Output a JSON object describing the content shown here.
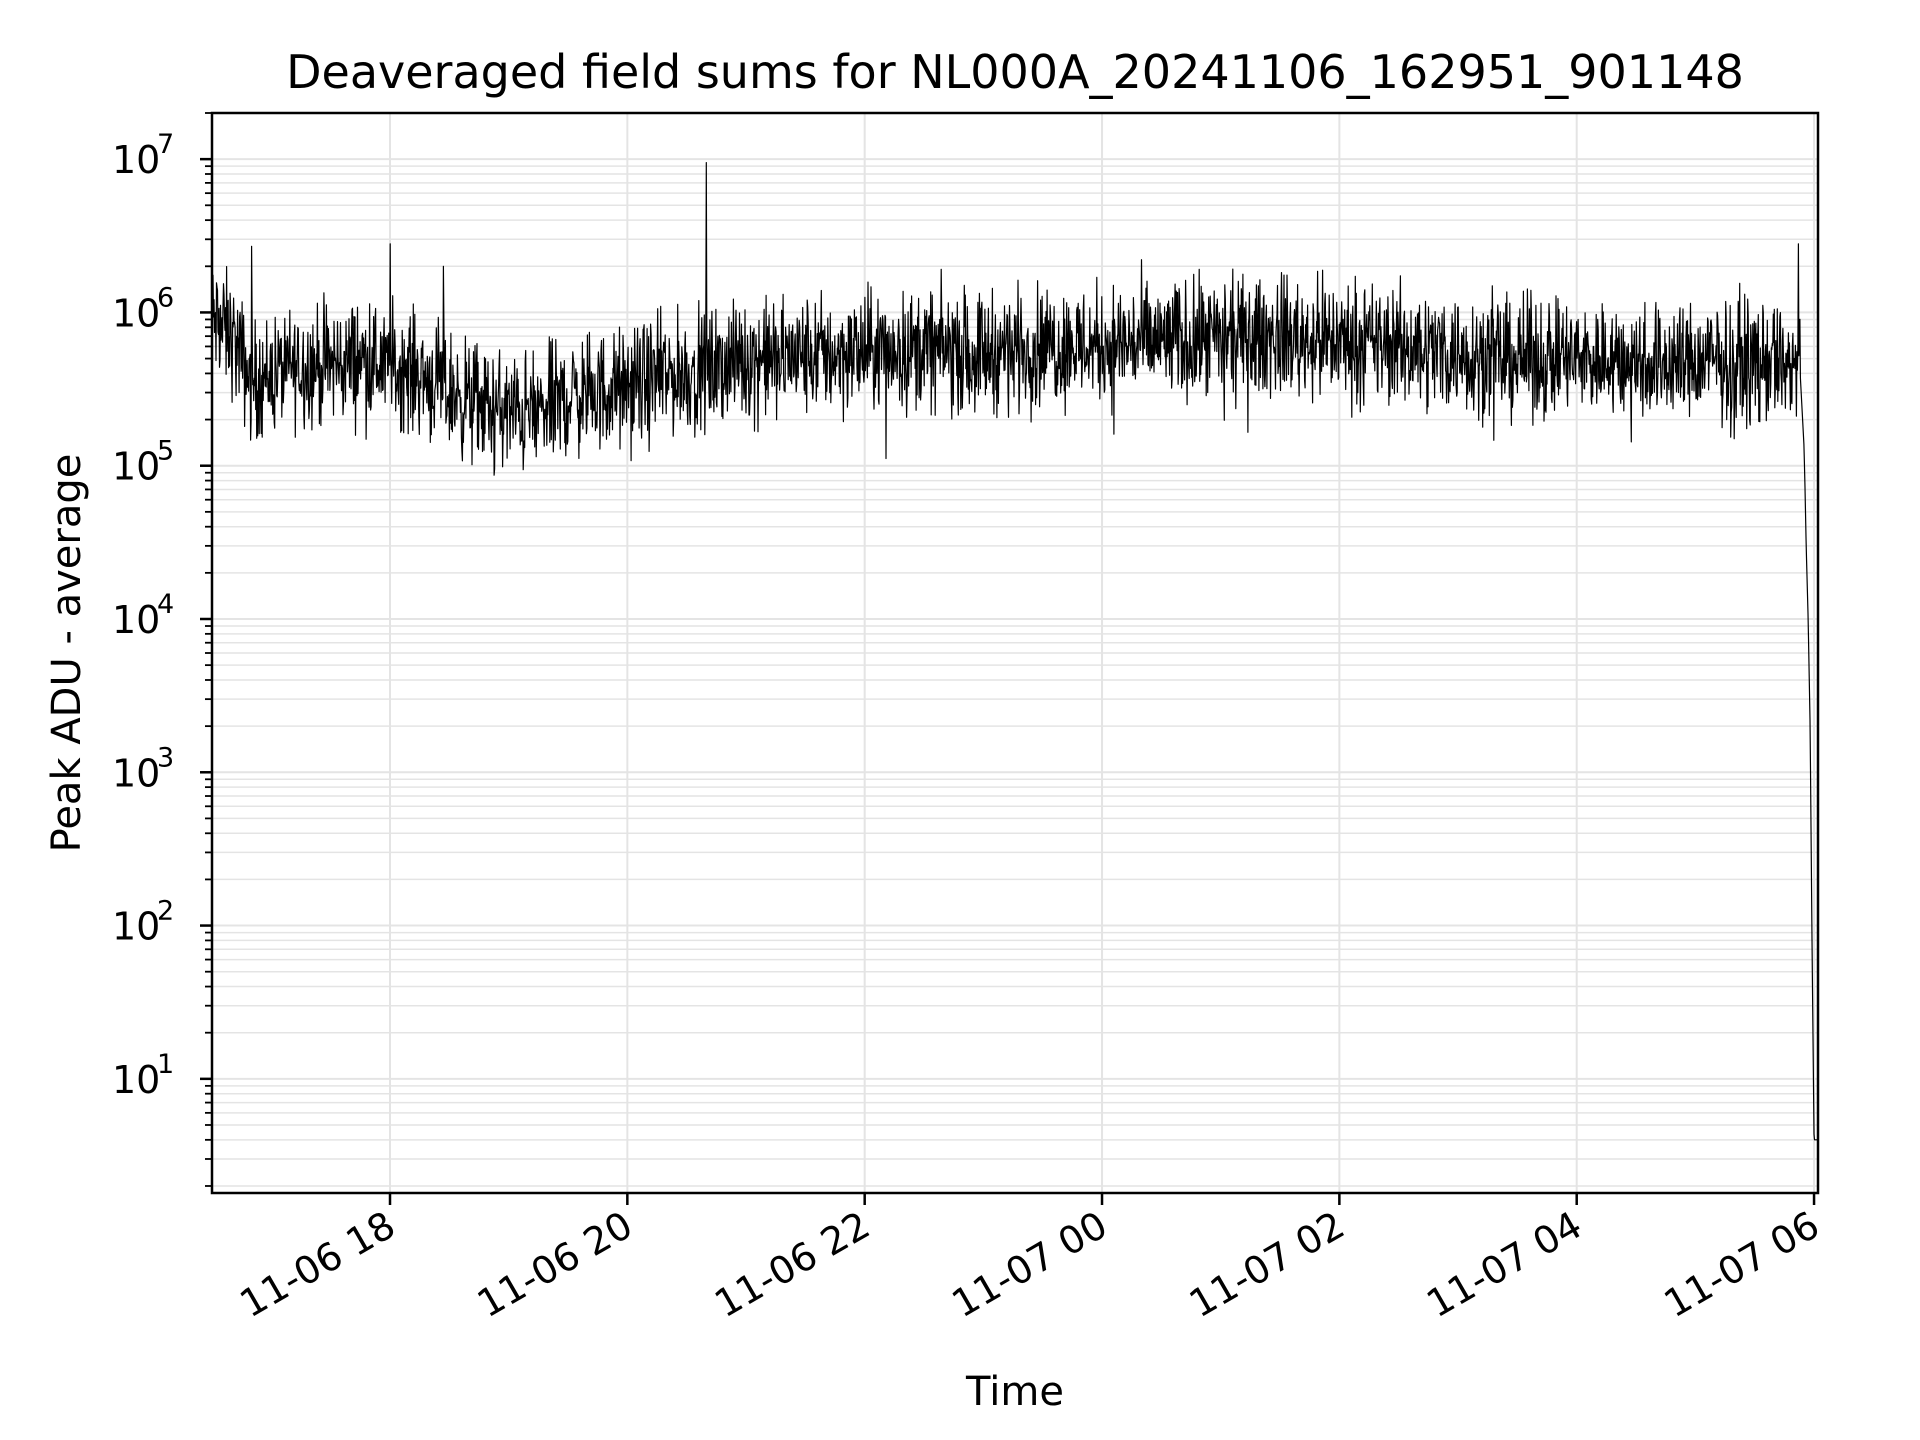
{
  "chart_data": {
    "type": "line",
    "title": "Deaveraged field sums for NL000A_20241106_162951_901148",
    "xlabel": "Time",
    "ylabel": "Peak ADU - average",
    "x_scale": "time",
    "y_scale": "log",
    "xlim": [
      "2024-11-06 16:30",
      "2024-11-07 06:02"
    ],
    "ylim": [
      1.8,
      20000000.0
    ],
    "grid": true,
    "legend": "none",
    "colors": {
      "line": "#000000",
      "grid": "#e4e4e4",
      "background": "#ffffff"
    },
    "x_ticks": [
      {
        "time": "2024-11-06 18:00",
        "label": "11-06 18"
      },
      {
        "time": "2024-11-06 20:00",
        "label": "11-06 20"
      },
      {
        "time": "2024-11-06 22:00",
        "label": "11-06 22"
      },
      {
        "time": "2024-11-07 00:00",
        "label": "11-07 00"
      },
      {
        "time": "2024-11-07 02:00",
        "label": "11-07 02"
      },
      {
        "time": "2024-11-07 04:00",
        "label": "11-07 04"
      },
      {
        "time": "2024-11-07 06:00",
        "label": "11-07 06"
      }
    ],
    "y_ticks": [
      {
        "value": 10,
        "base": "10",
        "exp": "1"
      },
      {
        "value": 100,
        "base": "10",
        "exp": "2"
      },
      {
        "value": 1000,
        "base": "10",
        "exp": "3"
      },
      {
        "value": 10000,
        "base": "10",
        "exp": "4"
      },
      {
        "value": 100000,
        "base": "10",
        "exp": "5"
      },
      {
        "value": 1000000,
        "base": "10",
        "exp": "6"
      },
      {
        "value": 10000000,
        "base": "10",
        "exp": "7"
      }
    ],
    "series": [
      {
        "x": [
          "2024-11-06 16:30",
          "2024-11-06 16:40",
          "2024-11-06 16:50",
          "2024-11-06 17:00",
          "2024-11-06 17:15",
          "2024-11-06 17:30",
          "2024-11-06 17:45",
          "2024-11-06 18:00",
          "2024-11-06 18:15",
          "2024-11-06 18:30",
          "2024-11-06 18:45",
          "2024-11-06 19:00",
          "2024-11-06 19:15",
          "2024-11-06 19:30",
          "2024-11-06 19:45",
          "2024-11-06 20:00",
          "2024-11-06 20:20",
          "2024-11-06 20:40",
          "2024-11-06 21:00",
          "2024-11-06 21:30",
          "2024-11-06 22:00",
          "2024-11-06 22:30",
          "2024-11-06 23:00",
          "2024-11-06 23:30",
          "2024-11-07 00:00",
          "2024-11-07 00:30",
          "2024-11-07 01:00",
          "2024-11-07 01:30",
          "2024-11-07 02:00",
          "2024-11-07 02:30",
          "2024-11-07 03:00",
          "2024-11-07 03:30",
          "2024-11-07 04:00",
          "2024-11-07 04:30",
          "2024-11-07 05:00",
          "2024-11-07 05:30",
          "2024-11-07 05:50",
          "2024-11-07 05:53",
          "2024-11-07 05:55",
          "2024-11-07 05:56",
          "2024-11-07 05:57",
          "2024-11-07 05:58",
          "2024-11-07 05:59",
          "2024-11-07 06:00",
          "2024-11-07 06:02"
        ],
        "y": [
          900000,
          700000,
          350000,
          400000,
          450000,
          450000,
          500000,
          450000,
          400000,
          300000,
          250000,
          220000,
          220000,
          280000,
          300000,
          320000,
          380000,
          420000,
          500000,
          520000,
          550000,
          580000,
          550000,
          600000,
          620000,
          650000,
          650000,
          700000,
          650000,
          600000,
          550000,
          500000,
          500000,
          480000,
          480000,
          480000,
          450000,
          400000,
          130000,
          30000,
          10000,
          2000,
          70,
          4,
          4
        ]
      }
    ],
    "annotations_peaks": [
      {
        "x": "2024-11-06 16:50",
        "y": 2700000
      },
      {
        "x": "2024-11-06 18:00",
        "y": 2800000
      },
      {
        "x": "2024-11-06 18:27",
        "y": 2000000
      },
      {
        "x": "2024-11-06 20:40",
        "y": 9500000
      },
      {
        "x": "2024-11-07 05:52",
        "y": 2800000
      }
    ]
  }
}
